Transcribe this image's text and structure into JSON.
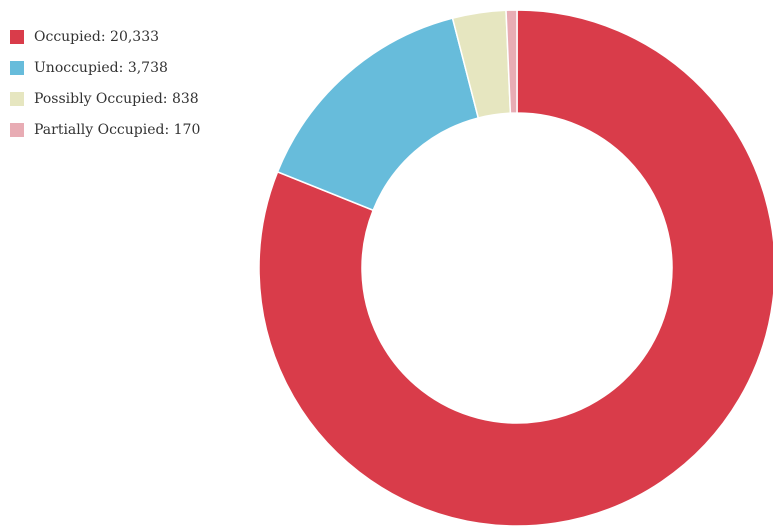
{
  "chart_data": {
    "type": "donut",
    "categories": [
      "Occupied",
      "Unoccupied",
      "Possibly Occupied",
      "Partially Occupied"
    ],
    "values": [
      20333,
      3738,
      838,
      170
    ],
    "value_labels": [
      "20,333",
      "3,738",
      "838",
      "170"
    ],
    "colors": [
      "#d93c4a",
      "#67bcdb",
      "#e6e6c0",
      "#e8acb4"
    ],
    "legend": "top-left"
  }
}
